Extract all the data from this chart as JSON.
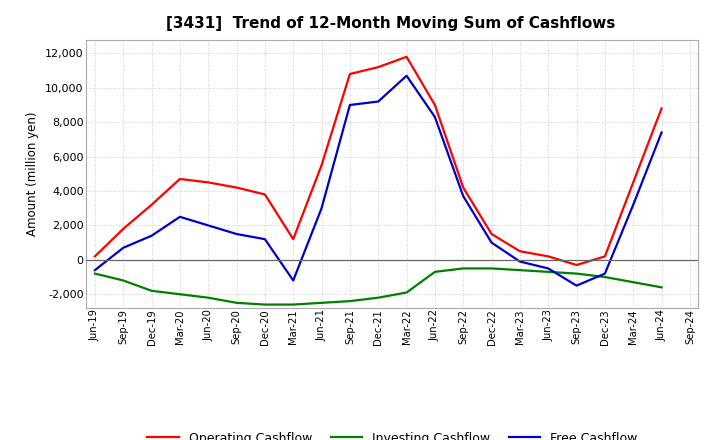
{
  "title": "[3431]  Trend of 12-Month Moving Sum of Cashflows",
  "ylabel": "Amount (million yen)",
  "background_color": "#ffffff",
  "grid_color": "#bbbbbb",
  "x_labels": [
    "Jun-19",
    "Sep-19",
    "Dec-19",
    "Mar-20",
    "Jun-20",
    "Sep-20",
    "Dec-20",
    "Mar-21",
    "Jun-21",
    "Sep-21",
    "Dec-21",
    "Mar-22",
    "Jun-22",
    "Sep-22",
    "Dec-22",
    "Mar-23",
    "Jun-23",
    "Sep-23",
    "Dec-23",
    "Mar-24",
    "Jun-24",
    "Sep-24"
  ],
  "operating_cashflow": [
    200,
    1800,
    3200,
    4700,
    4500,
    4200,
    3800,
    1200,
    5500,
    10800,
    11200,
    11800,
    9000,
    4200,
    1500,
    500,
    200,
    -300,
    200,
    4500,
    8800,
    null
  ],
  "investing_cashflow": [
    -800,
    -1200,
    -1800,
    -2000,
    -2200,
    -2500,
    -2600,
    -2600,
    -2500,
    -2400,
    -2200,
    -1900,
    -700,
    -500,
    -500,
    -600,
    -700,
    -800,
    -1000,
    -1300,
    -1600,
    null
  ],
  "free_cashflow": [
    -600,
    700,
    1400,
    2500,
    2000,
    1500,
    1200,
    -1200,
    3000,
    9000,
    9200,
    10700,
    8300,
    3700,
    1000,
    -100,
    -500,
    -1500,
    -800,
    3200,
    7400,
    null
  ],
  "operating_color": "#ff0000",
  "investing_color": "#008000",
  "free_color": "#0000cd",
  "line_width": 1.6,
  "ylim": [
    -2800,
    12800
  ],
  "yticks": [
    -2000,
    0,
    2000,
    4000,
    6000,
    8000,
    10000,
    12000
  ]
}
